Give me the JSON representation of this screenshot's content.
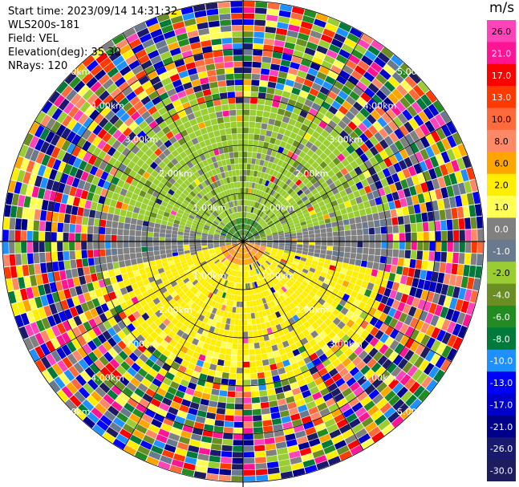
{
  "info": {
    "start_time": "Start time: 2023/09/14 14:31:32",
    "instrument": "WLS200s-181",
    "field": "Field: VEL",
    "elevation": "Elevation(deg): 35.30",
    "nrays": "NRays: 120"
  },
  "chart_data": {
    "type": "ppi",
    "field": "VEL",
    "nrays": 120,
    "elevation_deg": 35.3,
    "range_rings_km": [
      1,
      2,
      3,
      4,
      5
    ],
    "ring_label_text": {
      "1": "1.00km",
      "2": "2.00km",
      "3": "3.00km",
      "4": "4.00km",
      "5": "5.00km"
    },
    "colorbar": {
      "unit": "m/s",
      "levels": [
        {
          "label": "26.0",
          "color": "#ff44bb"
        },
        {
          "label": "21.0",
          "color": "#ff1493"
        },
        {
          "label": "17.0",
          "color": "#ff0000"
        },
        {
          "label": "13.0",
          "color": "#ff3a00"
        },
        {
          "label": "10.0",
          "color": "#ff6a3c"
        },
        {
          "label": "8.0",
          "color": "#ff8866"
        },
        {
          "label": "6.0",
          "color": "#ffa500"
        },
        {
          "label": "2.0",
          "color": "#ffee00"
        },
        {
          "label": "1.0",
          "color": "#ffff55"
        },
        {
          "label": "0.0",
          "color": "#808080"
        },
        {
          "label": "-1.0",
          "color": "#6a7a8e"
        },
        {
          "label": "-2.0",
          "color": "#9acd32"
        },
        {
          "label": "-4.0",
          "color": "#6b8e23"
        },
        {
          "label": "-6.0",
          "color": "#228b22"
        },
        {
          "label": "-8.0",
          "color": "#007a3a"
        },
        {
          "label": "-10.0",
          "color": "#1e90ff"
        },
        {
          "label": "-13.0",
          "color": "#0000ff"
        },
        {
          "label": "-17.0",
          "color": "#0000cd"
        },
        {
          "label": "-21.0",
          "color": "#00008b"
        },
        {
          "label": "-26.0",
          "color": "#191970"
        },
        {
          "label": "-30.0",
          "color": "#1c1c5e"
        }
      ]
    }
  }
}
